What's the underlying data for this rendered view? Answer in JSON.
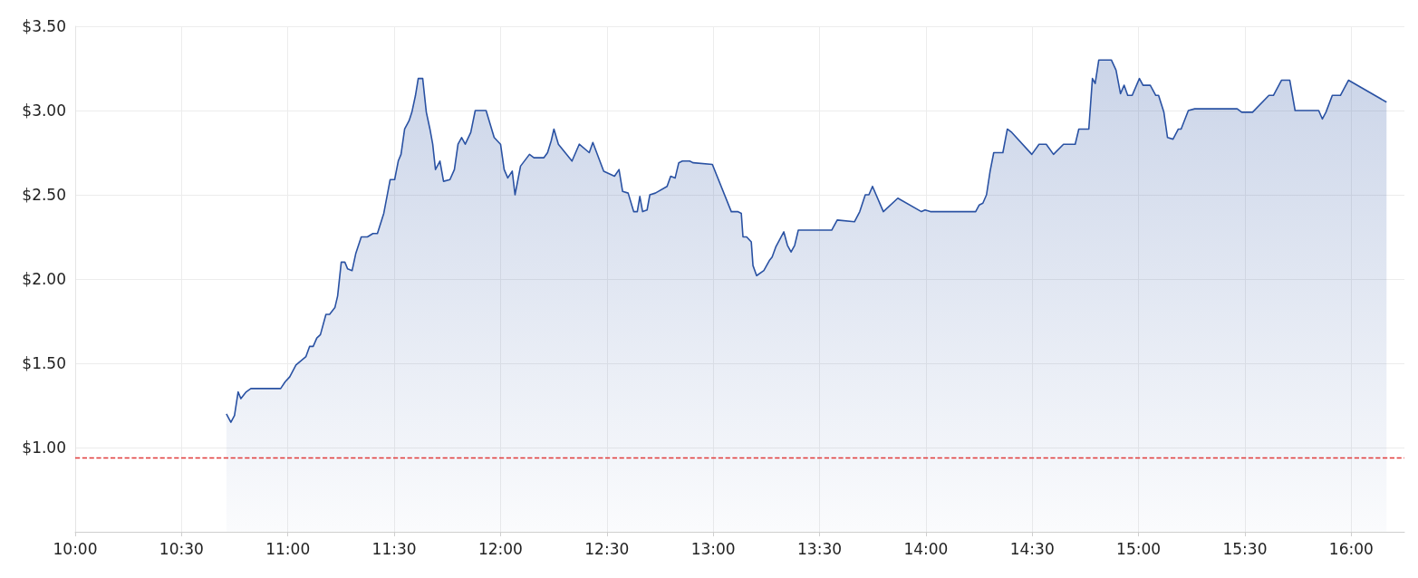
{
  "chart_data": {
    "type": "area",
    "x": [
      10.711,
      10.732,
      10.749,
      10.766,
      10.779,
      10.804,
      10.826,
      10.966,
      10.987,
      11.009,
      11.038,
      11.085,
      11.102,
      11.119,
      11.136,
      11.153,
      11.179,
      11.196,
      11.221,
      11.234,
      11.251,
      11.268,
      11.281,
      11.302,
      11.319,
      11.345,
      11.374,
      11.4,
      11.421,
      11.451,
      11.472,
      11.481,
      11.502,
      11.519,
      11.532,
      11.549,
      11.57,
      11.583,
      11.6,
      11.613,
      11.634,
      11.651,
      11.668,
      11.681,
      11.694,
      11.715,
      11.732,
      11.762,
      11.783,
      11.8,
      11.817,
      11.834,
      11.86,
      11.881,
      11.932,
      11.97,
      12.0,
      12.017,
      12.034,
      12.055,
      12.068,
      12.094,
      12.136,
      12.157,
      12.204,
      12.221,
      12.238,
      12.251,
      12.272,
      12.336,
      12.37,
      12.417,
      12.434,
      12.485,
      12.536,
      12.557,
      12.574,
      12.6,
      12.626,
      12.643,
      12.655,
      12.668,
      12.689,
      12.702,
      12.728,
      12.783,
      12.8,
      12.821,
      12.838,
      12.855,
      12.889,
      12.906,
      12.996,
      13.085,
      13.115,
      13.132,
      13.14,
      13.157,
      13.179,
      13.187,
      13.204,
      13.238,
      13.264,
      13.277,
      13.294,
      13.311,
      13.332,
      13.349,
      13.366,
      13.383,
      13.4,
      13.557,
      13.583,
      13.664,
      13.689,
      13.715,
      13.732,
      13.749,
      13.8,
      13.868,
      13.979,
      13.996,
      14.021,
      14.234,
      14.251,
      14.268,
      14.285,
      14.302,
      14.319,
      14.362,
      14.383,
      14.404,
      14.498,
      14.532,
      14.566,
      14.6,
      14.647,
      14.702,
      14.719,
      14.766,
      14.783,
      14.796,
      14.813,
      14.872,
      14.894,
      14.915,
      14.932,
      14.949,
      14.97,
      15.004,
      15.021,
      15.055,
      15.081,
      15.094,
      15.119,
      15.136,
      15.162,
      15.187,
      15.2,
      15.234,
      15.264,
      15.464,
      15.485,
      15.536,
      15.613,
      15.634,
      15.672,
      15.711,
      15.736,
      15.847,
      15.864,
      15.881,
      15.911,
      15.949,
      15.987,
      16.166
    ],
    "series": [
      {
        "color": "#2a52a3",
        "values": [
          1.2,
          1.15,
          1.19,
          1.33,
          1.29,
          1.33,
          1.35,
          1.35,
          1.39,
          1.42,
          1.49,
          1.54,
          1.6,
          1.6,
          1.65,
          1.67,
          1.79,
          1.79,
          1.83,
          1.9,
          2.1,
          2.1,
          2.06,
          2.05,
          2.15,
          2.25,
          2.25,
          2.27,
          2.27,
          2.39,
          2.53,
          2.59,
          2.59,
          2.7,
          2.74,
          2.89,
          2.94,
          2.99,
          3.09,
          3.19,
          3.19,
          2.99,
          2.89,
          2.8,
          2.65,
          2.7,
          2.58,
          2.59,
          2.65,
          2.8,
          2.84,
          2.8,
          2.87,
          3.0,
          3.0,
          2.84,
          2.8,
          2.65,
          2.6,
          2.64,
          2.5,
          2.67,
          2.74,
          2.72,
          2.72,
          2.75,
          2.82,
          2.89,
          2.8,
          2.7,
          2.8,
          2.75,
          2.81,
          2.64,
          2.61,
          2.65,
          2.52,
          2.51,
          2.4,
          2.4,
          2.49,
          2.4,
          2.41,
          2.5,
          2.51,
          2.55,
          2.61,
          2.6,
          2.69,
          2.7,
          2.7,
          2.69,
          2.68,
          2.4,
          2.4,
          2.39,
          2.25,
          2.25,
          2.22,
          2.08,
          2.02,
          2.05,
          2.11,
          2.13,
          2.19,
          2.23,
          2.28,
          2.2,
          2.16,
          2.2,
          2.29,
          2.29,
          2.35,
          2.34,
          2.4,
          2.5,
          2.5,
          2.55,
          2.4,
          2.48,
          2.4,
          2.41,
          2.4,
          2.4,
          2.44,
          2.45,
          2.5,
          2.64,
          2.75,
          2.75,
          2.89,
          2.87,
          2.74,
          2.8,
          2.8,
          2.74,
          2.8,
          2.8,
          2.89,
          2.89,
          3.19,
          3.16,
          3.3,
          3.3,
          3.24,
          3.1,
          3.15,
          3.09,
          3.09,
          3.19,
          3.15,
          3.15,
          3.09,
          3.09,
          2.99,
          2.84,
          2.83,
          2.89,
          2.89,
          3.0,
          3.01,
          3.01,
          2.99,
          2.99,
          3.09,
          3.09,
          3.18,
          3.18,
          3.0,
          3.0,
          2.95,
          2.99,
          3.09,
          3.09,
          3.18,
          3.05
        ]
      }
    ],
    "xlim": [
      10,
      16.25
    ],
    "xticks": [
      {
        "value": 10,
        "label": "10:00"
      },
      {
        "value": 10.5,
        "label": "10:30"
      },
      {
        "value": 11,
        "label": "11:00"
      },
      {
        "value": 11.5,
        "label": "11:30"
      },
      {
        "value": 12,
        "label": "12:00"
      },
      {
        "value": 12.5,
        "label": "12:30"
      },
      {
        "value": 13,
        "label": "13:00"
      },
      {
        "value": 13.5,
        "label": "13:30"
      },
      {
        "value": 14,
        "label": "14:00"
      },
      {
        "value": 14.5,
        "label": "14:30"
      },
      {
        "value": 15,
        "label": "15:00"
      },
      {
        "value": 15.5,
        "label": "15:30"
      },
      {
        "value": 16,
        "label": "16:00"
      }
    ],
    "ylim": [
      0.5,
      3.5
    ],
    "yticks": [
      {
        "value": 1,
        "label": "$1.00"
      },
      {
        "value": 1.5,
        "label": "$1.50"
      },
      {
        "value": 2,
        "label": "$2.00"
      },
      {
        "value": 2.5,
        "label": "$2.50"
      },
      {
        "value": 3,
        "label": "$3.00"
      },
      {
        "value": 3.5,
        "label": "$3.50"
      }
    ],
    "ref_lines": [
      {
        "axis": "y",
        "value": 0.94,
        "label": null,
        "color": "#e03a3a",
        "line_style": "dashed"
      }
    ],
    "grid": true,
    "marker": "none",
    "line_style": "solid"
  }
}
